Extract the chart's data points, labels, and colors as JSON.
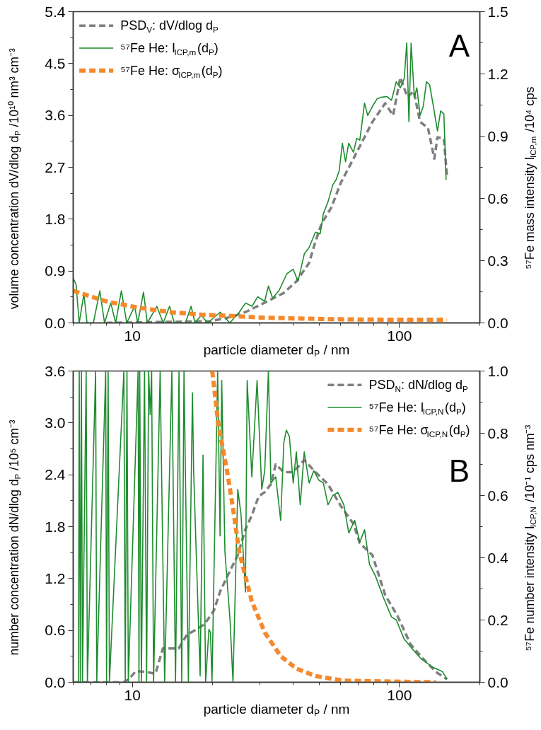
{
  "chart_data": [
    {
      "type": "line",
      "xlabel": "particle diameter d$_{P}$ / nm",
      "ylabel": "volume concentration dV/dlog d$_{P}$ /10¹⁰ nm³ cm⁻³",
      "y2label": "⁵⁷Fe mass intensity I$_{ICP,m}$ /10⁴ cps",
      "annotations": [
        "A"
      ],
      "log": "x",
      "legend": "top left",
      "xlim": [
        6,
        200
      ],
      "xticks": [
        {
          "value": 6,
          "label": null
        },
        {
          "value": 7,
          "label": null
        },
        {
          "value": 8,
          "label": null
        },
        {
          "value": 9,
          "label": null
        },
        10,
        {
          "value": 20,
          "label": null
        },
        {
          "value": 30,
          "label": null
        },
        {
          "value": 40,
          "label": null
        },
        {
          "value": 50,
          "label": null
        },
        {
          "value": 60,
          "label": null
        },
        {
          "value": 70,
          "label": null
        },
        {
          "value": 80,
          "label": null
        },
        {
          "value": 90,
          "label": null
        },
        100,
        {
          "value": 200,
          "label": null
        }
      ],
      "ylim": [
        0,
        5.4
      ],
      "yticks": [
        {
          "value": 0,
          "label": "0.0"
        },
        {
          "value": 0.45,
          "label": null
        },
        0.9,
        {
          "value": 1.35,
          "label": null
        },
        1.8,
        {
          "value": 2.25,
          "label": null
        },
        2.7,
        {
          "value": 3.15,
          "label": null
        },
        3.6,
        {
          "value": 4.05,
          "label": null
        },
        4.5,
        {
          "value": 4.95,
          "label": null
        },
        5.4
      ],
      "y2lim": [
        0,
        1.5
      ],
      "y2ticks": [
        {
          "value": 0,
          "label": "0.0"
        },
        {
          "value": 0.15,
          "label": null
        },
        0.3,
        {
          "value": 0.45,
          "label": null
        },
        0.6,
        {
          "value": 0.75,
          "label": null
        },
        0.9,
        {
          "value": 1.05,
          "label": null
        },
        1.2,
        {
          "value": 1.35,
          "label": null
        },
        1.5
      ],
      "series": [
        {
          "name": "PSD$_{V}$: dV/dlog d$_{P}$",
          "color": "#7f7f7f",
          "line_style": "dashed",
          "x": [
            7.97,
            19.65,
            23.79,
            26.55,
            31.27,
            36.86,
            41.11,
            45.87,
            48.45,
            51.17,
            55.55,
            60.3,
            67.27,
            73.0,
            79.25,
            88.42,
            94.67,
            100.8,
            107.1,
            113.1,
            119.5,
            127.9,
            135.1,
            138.8,
            146.7,
            150.7
          ],
          "values": [
            0,
            0.03,
            0.11,
            0.19,
            0.35,
            0.52,
            0.72,
            1.04,
            1.41,
            1.73,
            2.0,
            2.43,
            2.85,
            3.17,
            3.49,
            3.81,
            3.6,
            4.26,
            3.92,
            4.02,
            3.49,
            3.38,
            2.85,
            3.22,
            3.2,
            2.53
          ]
        },
        {
          "name": "⁵⁷Fe He: I$_{ICP,m}$(d$_{P}$)",
          "color": "#1e8c2e",
          "line_style": "solid",
          "axis": "y2",
          "x": [
            6.0,
            6.15,
            6.32,
            6.58,
            6.76,
            7.14,
            7.55,
            7.86,
            8.3,
            8.65,
            9.09,
            9.52,
            10.19,
            10.47,
            11.0,
            11.37,
            12.34,
            13.04,
            13.77,
            14.35,
            15.79,
            16.59,
            17.14,
            18.1,
            19.12,
            21.33,
            23.15,
            25.13,
            26.55,
            28.04,
            29.45,
            31.27,
            32.32,
            33.49,
            35.38,
            37.88,
            40.0,
            41.69,
            44.03,
            45.87,
            48.45,
            50.48,
            51.88,
            54.05,
            56.31,
            57.87,
            59.47,
            61.13,
            62.83,
            64.56,
            67.27,
            69.14,
            71.05,
            74.0,
            76.05,
            79.25,
            82.57,
            86.03,
            89.64,
            93.4,
            97.3,
            100.8,
            104.2,
            106.5,
            108.5,
            110.6,
            113.7,
            116.2,
            119.5,
            122.8,
            126.2,
            129.7,
            134.0,
            138.8,
            142.7,
            146.7,
            149.5
          ],
          "values": [
            0.215,
            0.185,
            0,
            0.14,
            0,
            0,
            0.155,
            0,
            0.096,
            0,
            0.155,
            0,
            0.08,
            0,
            0.148,
            0,
            0.08,
            0,
            0.08,
            0,
            0,
            0.08,
            0,
            0.037,
            0,
            0.052,
            0,
            0.052,
            0.096,
            0.08,
            0.126,
            0.104,
            0.178,
            0.119,
            0.155,
            0.237,
            0.259,
            0.2,
            0.333,
            0.363,
            0.437,
            0.43,
            0.526,
            0.585,
            0.666,
            0.689,
            0.733,
            0.866,
            0.777,
            0.866,
            0.822,
            0.889,
            0.881,
            1.059,
            1.0,
            1.044,
            1.081,
            1.088,
            1.091,
            1.073,
            1.162,
            1.133,
            1.177,
            1.35,
            0.97,
            1.348,
            1.088,
            1.133,
            1.0,
            1.044,
            1.162,
            1.148,
            1.044,
            0.925,
            1.022,
            1.007,
            0.689
          ]
        },
        {
          "name": "⁵⁷Fe He: σ$_{ICP,m}$(d$_{P}$)",
          "color": "#f5892b",
          "line_style": "dashed",
          "axis": "y2",
          "x": [
            6.0,
            7.97,
            10.47,
            13.77,
            18.1,
            23.79,
            31.27,
            54.05,
            93.4,
            150.7
          ],
          "values": [
            0.155,
            0.104,
            0.074,
            0.052,
            0.04,
            0.033,
            0.025,
            0.018,
            0.015,
            0.015
          ]
        }
      ]
    },
    {
      "type": "line",
      "xlabel": "particle diameter d$_{P}$ / nm",
      "ylabel": "number concentration dN/dlog d$_{P}$ /10⁵ cm⁻³",
      "y2label": "⁵⁷Fe number intensity I$_{ICP,N}$ /10⁻¹ cps nm⁻³",
      "annotations": [
        "B"
      ],
      "log": "x",
      "legend": "top right",
      "xlim": [
        6,
        200
      ],
      "xticks": [
        {
          "value": 6,
          "label": null
        },
        {
          "value": 7,
          "label": null
        },
        {
          "value": 8,
          "label": null
        },
        {
          "value": 9,
          "label": null
        },
        10,
        {
          "value": 20,
          "label": null
        },
        {
          "value": 30,
          "label": null
        },
        {
          "value": 40,
          "label": null
        },
        {
          "value": 50,
          "label": null
        },
        {
          "value": 60,
          "label": null
        },
        {
          "value": 70,
          "label": null
        },
        {
          "value": 80,
          "label": null
        },
        {
          "value": 90,
          "label": null
        },
        100,
        {
          "value": 200,
          "label": null
        }
      ],
      "ylim": [
        0,
        3.6
      ],
      "yticks": [
        {
          "value": 0,
          "label": "0.0"
        },
        {
          "value": 0.3,
          "label": null
        },
        0.6,
        {
          "value": 0.9,
          "label": null
        },
        1.2,
        {
          "value": 1.5,
          "label": null
        },
        1.8,
        {
          "value": 2.1,
          "label": null
        },
        2.4,
        {
          "value": 2.7,
          "label": null
        },
        {
          "value": 3,
          "label": "3.0"
        },
        {
          "value": 3.3,
          "label": null
        },
        3.6
      ],
      "y2lim": [
        0,
        1
      ],
      "y2ticks": [
        {
          "value": 0,
          "label": "0.0"
        },
        {
          "value": 0.1,
          "label": null
        },
        0.2,
        {
          "value": 0.3,
          "label": null
        },
        0.4,
        {
          "value": 0.5,
          "label": null
        },
        0.6,
        {
          "value": 0.7,
          "label": null
        },
        0.8,
        {
          "value": 0.9,
          "label": null
        },
        {
          "value": 1,
          "label": "1.0"
        }
      ],
      "series": [
        {
          "name": "PSD$_{N}$: dN/dlog d$_{P}$",
          "color": "#7f7f7f",
          "line_style": "dashed",
          "x": [
            6.0,
            9.3,
            9.8,
            10.3,
            11.2,
            12.2,
            13.0,
            14.9,
            16.0,
            17.1,
            18.6,
            20.2,
            21.3,
            23.2,
            24.8,
            26.5,
            28.0,
            29.7,
            31.3,
            33.0,
            34.4,
            36.9,
            40.0,
            44.0,
            48.5,
            54.0,
            60.3,
            67.3,
            71.0,
            79.2,
            88.4,
            98.6,
            110,
            122.8,
            137,
            150.7
          ],
          "values": [
            0,
            0,
            0.05,
            0.13,
            0.12,
            0.1,
            0.39,
            0.39,
            0.55,
            0.6,
            0.67,
            0.83,
            1.05,
            1.29,
            1.47,
            1.77,
            1.93,
            2.15,
            2.2,
            2.29,
            2.52,
            2.43,
            2.43,
            2.57,
            2.43,
            2.29,
            2.04,
            1.83,
            1.61,
            1.47,
            1.01,
            0.76,
            0.44,
            0.27,
            0.12,
            0.035
          ]
        },
        {
          "name": "⁵⁷Fe He: I$_{ICP,N}$(d$_{P}$)",
          "color": "#1e8c2e",
          "line_style": "solid",
          "axis": "y2",
          "x": [
            6.28,
            6.32,
            6.38,
            6.44,
            6.5,
            6.71,
            6.78,
            7.28,
            7.35,
            7.94,
            8.0,
            8.11,
            8.2,
            9.29,
            9.4,
            9.54,
            9.65,
            10.5,
            10.58,
            10.65,
            10.8,
            11.1,
            11.3,
            11.5,
            11.65,
            11.8,
            12.0,
            12.7,
            13.2,
            14.05,
            14.5,
            14.94,
            15.3,
            15.6,
            16.2,
            16.78,
            16.95,
            17.93,
            18.38,
            18.8,
            19.34,
            19.6,
            19.86,
            20.85,
            21.29,
            21.6,
            22.2,
            23.2,
            23.8,
            24.8,
            25.5,
            26.5,
            26.9,
            28.0,
            29.3,
            30.5,
            31.3,
            32.3,
            33.0,
            34.4,
            35.9,
            36.9,
            37.7,
            38.7,
            40.0,
            41.1,
            42.5,
            44.0,
            45.9,
            47.8,
            49.8,
            51.9,
            54.0,
            56.3,
            58.8,
            61.9,
            64.6,
            68.0,
            71.0,
            74.0,
            77.2,
            81.4,
            87.3,
            93.4,
            97.3,
            104,
            111,
            121,
            133,
            145,
            150.7
          ],
          "values": [
            0,
            1,
            0,
            1,
            0,
            1,
            0,
            1,
            0,
            1,
            0,
            1,
            0,
            1,
            0,
            1,
            0,
            1,
            0,
            1,
            0,
            1,
            0,
            1,
            0.86,
            1,
            0,
            1,
            0,
            1,
            0,
            1,
            0,
            1,
            0,
            0.93,
            0.68,
            0.02,
            0.73,
            0,
            0.17,
            0.16,
            0,
            1,
            0.47,
            0.97,
            0.42,
            0.2,
            0,
            0.62,
            0.54,
            0.29,
            0.97,
            0.66,
            0.97,
            0.62,
            0.68,
            1.0,
            0.64,
            0.66,
            0.52,
            0.77,
            0.81,
            0.79,
            0.64,
            0.74,
            0.57,
            0.74,
            0.64,
            0.68,
            0.65,
            0.64,
            0.57,
            0.6,
            0.61,
            0.57,
            0.48,
            0.52,
            0.45,
            0.49,
            0.38,
            0.34,
            0.27,
            0.21,
            0.2,
            0.14,
            0.11,
            0.074,
            0.049,
            0.034,
            0.01
          ]
        },
        {
          "name": "⁵⁷Fe He: σ$_{ICP,N}$(d$_{P}$)",
          "color": "#f5892b",
          "line_style": "dashed",
          "axis": "y2",
          "x": [
            19.9,
            20.97,
            22.6,
            23.8,
            25.1,
            26.5,
            28.0,
            31.3,
            35.9,
            41.1,
            48.5,
            61.9,
            137
          ],
          "values": [
            1.0,
            0.83,
            0.68,
            0.56,
            0.42,
            0.34,
            0.26,
            0.16,
            0.084,
            0.044,
            0.02,
            0.005,
            0
          ]
        }
      ]
    }
  ]
}
